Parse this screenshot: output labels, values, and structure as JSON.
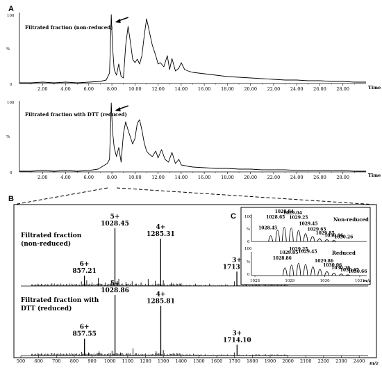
{
  "figure": {
    "panel_letters": [
      "A",
      "B",
      "C"
    ]
  },
  "chart_data": [
    {
      "type": "line",
      "panel": "A",
      "title": "Filtrated fraction (non-reduced)",
      "xlabel": "Time",
      "ylabel": "%",
      "xlim": [
        0,
        30
      ],
      "ylim": [
        0,
        100
      ],
      "x_ticks": [
        "2.00",
        "4.00",
        "6.00",
        "8.00",
        "10.00",
        "12.00",
        "14.00",
        "16.00",
        "18.00",
        "20.00",
        "22.00",
        "24.00",
        "26.00",
        "28.00"
      ],
      "y_ticks": [
        "0",
        "100"
      ],
      "arrow_at": 8.1,
      "series": [
        {
          "x": [
            0,
            1,
            2,
            3,
            4,
            5,
            6,
            7,
            7.5,
            7.8,
            7.95,
            8.05,
            8.2,
            8.4,
            8.6,
            8.8,
            9.0,
            9.2,
            9.4,
            9.6,
            9.8,
            10.0,
            10.2,
            10.4,
            10.6,
            10.8,
            11.0,
            11.2,
            11.5,
            11.8,
            12.0,
            12.2,
            12.5,
            12.8,
            13.0,
            13.2,
            13.5,
            13.8,
            14.0,
            14.3,
            14.6,
            15,
            16,
            17,
            18,
            19,
            20,
            21,
            22,
            23,
            24,
            25,
            26,
            27,
            28,
            29,
            30
          ],
          "y": [
            1,
            1,
            2,
            1,
            2,
            1,
            2,
            3,
            5,
            15,
            99,
            55,
            20,
            12,
            28,
            10,
            8,
            55,
            82,
            60,
            35,
            30,
            35,
            28,
            40,
            68,
            93,
            78,
            55,
            40,
            28,
            30,
            24,
            40,
            20,
            36,
            18,
            22,
            30,
            20,
            18,
            16,
            14,
            12,
            10,
            9,
            8,
            7,
            6,
            5,
            5,
            4,
            4,
            3,
            3,
            2,
            2
          ]
        }
      ]
    },
    {
      "type": "line",
      "panel": "A",
      "title": "Filtrated fraction with DTT (reduced)",
      "xlabel": "Time",
      "ylabel": "%",
      "xlim": [
        0,
        30
      ],
      "ylim": [
        0,
        100
      ],
      "x_ticks": [
        "2.00",
        "4.00",
        "6.00",
        "8.00",
        "10.00",
        "12.00",
        "14.00",
        "16.00",
        "18.00",
        "20.00",
        "22.00",
        "24.00",
        "26.00",
        "28.00"
      ],
      "y_ticks": [
        "0",
        "100"
      ],
      "arrow_at": 8.1,
      "series": [
        {
          "x": [
            0,
            1,
            2,
            3,
            4,
            5,
            6,
            6.8,
            7.2,
            7.6,
            7.8,
            7.95,
            8.05,
            8.2,
            8.4,
            8.6,
            8.8,
            9.0,
            9.2,
            9.4,
            9.6,
            9.8,
            10.0,
            10.2,
            10.4,
            10.6,
            10.8,
            11.0,
            11.2,
            11.5,
            11.8,
            12.0,
            12.3,
            12.6,
            12.9,
            13.2,
            13.5,
            13.8,
            14.0,
            14.3,
            14.6,
            15,
            16,
            17,
            18,
            19,
            20,
            21,
            22,
            23,
            24,
            25,
            26,
            27,
            28,
            29,
            30
          ],
          "y": [
            1,
            1,
            2,
            1,
            2,
            1,
            2,
            4,
            8,
            12,
            18,
            99,
            60,
            35,
            22,
            35,
            14,
            55,
            72,
            60,
            50,
            40,
            48,
            70,
            75,
            60,
            42,
            30,
            26,
            22,
            30,
            20,
            32,
            18,
            14,
            28,
            12,
            18,
            10,
            9,
            8,
            7,
            6,
            5,
            5,
            4,
            4,
            3,
            3,
            3,
            2,
            2,
            2,
            2,
            2,
            1,
            1
          ]
        }
      ]
    },
    {
      "type": "bar",
      "panel": "B",
      "title": "Filtrated fraction (non-reduced)",
      "title_lines": [
        "Filtrated fraction",
        "(non-reduced)"
      ],
      "xlabel": "m/z",
      "xlim": [
        500,
        2450
      ],
      "ylim": [
        0,
        100
      ],
      "x_ticks": [
        "500",
        "600",
        "700",
        "800",
        "900",
        "1000",
        "1100",
        "1200",
        "1300",
        "1400",
        "1500",
        "1600",
        "1700",
        "1800",
        "1900",
        "2000",
        "2100",
        "2200",
        "2300",
        "2400"
      ],
      "peaks": [
        {
          "charge": "6+",
          "mz": 857.21,
          "intensity": 18
        },
        {
          "charge": "5+",
          "mz": 1028.45,
          "intensity": 100
        },
        {
          "charge": "4+",
          "mz": 1285.31,
          "intensity": 82
        },
        {
          "charge": "3+",
          "mz": 1713.1,
          "intensity": 25
        }
      ],
      "minor_peaks": [
        {
          "mz": 840,
          "intensity": 8
        },
        {
          "mz": 870,
          "intensity": 10
        },
        {
          "mz": 900,
          "intensity": 6
        },
        {
          "mz": 935,
          "intensity": 14
        },
        {
          "mz": 975,
          "intensity": 6
        },
        {
          "mz": 1010,
          "intensity": 9
        },
        {
          "mz": 1050,
          "intensity": 12
        },
        {
          "mz": 1090,
          "intensity": 7
        },
        {
          "mz": 1125,
          "intensity": 8
        },
        {
          "mz": 1175,
          "intensity": 6
        },
        {
          "mz": 1215,
          "intensity": 12
        },
        {
          "mz": 1255,
          "intensity": 9
        },
        {
          "mz": 1300,
          "intensity": 10
        },
        {
          "mz": 1345,
          "intensity": 6
        },
        {
          "mz": 1400,
          "intensity": 5
        },
        {
          "mz": 1480,
          "intensity": 4
        },
        {
          "mz": 1560,
          "intensity": 4
        },
        {
          "mz": 1650,
          "intensity": 3
        },
        {
          "mz": 1700,
          "intensity": 8
        },
        {
          "mz": 1760,
          "intensity": 3
        }
      ]
    },
    {
      "type": "bar",
      "panel": "B",
      "title": "Filtrated fraction with DTT (reduced)",
      "title_lines": [
        "Filtrated fraction with",
        "DTT (reduced)"
      ],
      "xlabel": "m/z",
      "xlim": [
        500,
        2450
      ],
      "ylim": [
        0,
        100
      ],
      "x_ticks": [
        "500",
        "600",
        "700",
        "800",
        "900",
        "1000",
        "1100",
        "1200",
        "1300",
        "1400",
        "1500",
        "1600",
        "1700",
        "1800",
        "1900",
        "2000",
        "2100",
        "2200",
        "2300",
        "2400"
      ],
      "peaks": [
        {
          "charge": "6+",
          "mz": 857.55,
          "intensity": 28
        },
        {
          "charge": "5+",
          "mz": 1028.86,
          "intensity": 100
        },
        {
          "charge": "4+",
          "mz": 1285.81,
          "intensity": 82
        },
        {
          "charge": "3+",
          "mz": 1714.1,
          "intensity": 18
        }
      ],
      "minor_peaks": [
        {
          "mz": 842,
          "intensity": 6
        },
        {
          "mz": 880,
          "intensity": 5
        },
        {
          "mz": 940,
          "intensity": 7
        },
        {
          "mz": 1012,
          "intensity": 8
        },
        {
          "mz": 1060,
          "intensity": 5
        },
        {
          "mz": 1130,
          "intensity": 12
        },
        {
          "mz": 1260,
          "intensity": 7
        },
        {
          "mz": 1300,
          "intensity": 9
        },
        {
          "mz": 1470,
          "intensity": 3
        },
        {
          "mz": 1700,
          "intensity": 5
        }
      ]
    },
    {
      "type": "bar",
      "panel": "C",
      "title": "Non-reduced",
      "ylabel": "%",
      "y_ticks": [
        "0",
        "100"
      ],
      "xlim": [
        1027.9,
        1031.2
      ],
      "ylim": [
        0,
        100
      ],
      "peaks": [
        {
          "mz": 1028.45,
          "intensity": 40,
          "label": "1028.45"
        },
        {
          "mz": 1028.65,
          "intensity": 80,
          "label": "1028.65"
        },
        {
          "mz": 1028.84,
          "intensity": 100,
          "label": "1028.84"
        },
        {
          "mz": 1029.04,
          "intensity": 95,
          "label": "1029.04"
        },
        {
          "mz": 1029.25,
          "intensity": 78,
          "label": "1029.25"
        },
        {
          "mz": 1029.45,
          "intensity": 55,
          "label": "1029.45"
        },
        {
          "mz": 1029.65,
          "intensity": 35,
          "label": "1029.65"
        },
        {
          "mz": 1029.85,
          "intensity": 20,
          "label": "1029.85"
        },
        {
          "mz": 1030.06,
          "intensity": 12,
          "label": "1030.06"
        },
        {
          "mz": 1030.26,
          "intensity": 6,
          "label": "1030.26"
        }
      ]
    },
    {
      "type": "bar",
      "panel": "C",
      "title": "Reduced",
      "xlabel": "m/z",
      "ylabel": "%",
      "y_ticks": [
        "0",
        "100"
      ],
      "x_ticks": [
        "1028",
        "1029",
        "1030",
        "1031"
      ],
      "xlim": [
        1027.9,
        1031.2
      ],
      "ylim": [
        0,
        100
      ],
      "peaks": [
        {
          "mz": 1028.86,
          "intensity": 62,
          "label": "1028.86"
        },
        {
          "mz": 1029.05,
          "intensity": 85,
          "label": "1029.05"
        },
        {
          "mz": 1029.25,
          "intensity": 100,
          "label": "1029.25"
        },
        {
          "mz": 1029.45,
          "intensity": 90,
          "label": "1029.45"
        },
        {
          "mz": 1029.66,
          "intensity": 70,
          "label": null
        },
        {
          "mz": 1029.86,
          "intensity": 50,
          "label": "1029.86"
        },
        {
          "mz": 1030.06,
          "intensity": 32,
          "label": "1030.06"
        },
        {
          "mz": 1030.26,
          "intensity": 20,
          "label": "1030.26"
        },
        {
          "mz": 1030.47,
          "intensity": 12,
          "label": "1030.47"
        },
        {
          "mz": 1030.66,
          "intensity": 6,
          "label": "1030.66"
        }
      ]
    }
  ]
}
